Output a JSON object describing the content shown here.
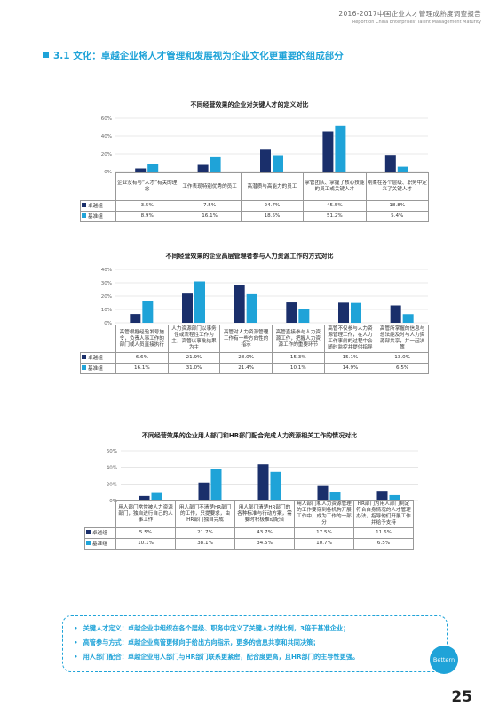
{
  "header": {
    "title": "2016-2017中国企业人才管理成熟度调查报告",
    "subtitle": "Report on China Enterprises' Talent Management Maturity"
  },
  "section_title": "3.1 文化：卓越企业将人才管理和发展视为企业文化更重要的组成部分",
  "colors": {
    "series1": "#1a2f6b",
    "series2": "#1fa3d8",
    "accent": "#1fa3d8"
  },
  "chart_data": [
    {
      "type": "bar",
      "title": "不同经营效果的企业对关键人才的定义对比",
      "categories": [
        "企业没有与“人才”有关的理念",
        "工作表现特别优秀的员工",
        "高潜质与高能力的员工",
        "掌管团队、掌握了核心技能的员工或关键人才",
        "刚柔在各个层级、职务中定义了关键人才"
      ],
      "series": [
        {
          "name": "卓越组",
          "values": [
            3.5,
            7.5,
            24.7,
            45.5,
            18.8
          ],
          "labels": [
            "3.5%",
            "7.5%",
            "24.7%",
            "45.5%",
            "18.8%"
          ]
        },
        {
          "name": "基准组",
          "values": [
            8.9,
            16.1,
            18.5,
            51.2,
            5.4
          ],
          "labels": [
            "8.9%",
            "16.1%",
            "18.5%",
            "51.2%",
            "5.4%"
          ]
        }
      ],
      "ylim": [
        0,
        60
      ],
      "yticks": [
        "0%",
        "20%",
        "40%",
        "60%"
      ]
    },
    {
      "type": "bar",
      "title": "不同经营效果的企业高层管理者参与人力资源工作的方式对比",
      "categories": [
        "高管根据经验发号施令，负责人事工作的部门或人员直接执行",
        "人力资源部门以事务性或流程性工作为主，高管以事批结果为主",
        "高管对人力资源管理工作有一些方向性的指示",
        "高管直接参与人力资源工作，把握人力资源工作的重要环节",
        "高管不仅参与人力资源管理工作，在人力工作事前的过程中会随时监控并提供指导",
        "高管所掌握的信息与想法能及时与人力资源部共享，并一起决策"
      ],
      "series": [
        {
          "name": "卓越组",
          "values": [
            6.6,
            21.9,
            28.0,
            15.3,
            15.1,
            13.0
          ],
          "labels": [
            "6.6%",
            "21.9%",
            "28.0%",
            "15.3%",
            "15.1%",
            "13.0%"
          ]
        },
        {
          "name": "基准组",
          "values": [
            16.1,
            31.0,
            21.4,
            10.1,
            14.9,
            6.5
          ],
          "labels": [
            "16.1%",
            "31.0%",
            "21.4%",
            "10.1%",
            "14.9%",
            "6.5%"
          ]
        }
      ],
      "ylim": [
        0,
        40
      ],
      "yticks": [
        "0%",
        "10%",
        "20%",
        "30%",
        "40%"
      ]
    },
    {
      "type": "bar",
      "title": "不同经营效果的企业用人部门和HR部门配合完成人力资源相关工作的情况对比",
      "categories": [
        "用人部门常常被人力资源部门，独自进行自己的人事工作",
        "用人部门不清楚HR部门的工作，只提要求，由HR部门独自完成",
        "用人部门清楚HR部门的各种标准与行动方案，需要时积极推动配合",
        "用人部门和人力资源管理的工作要穿到各机构开展工作中，成为工作的一部分",
        "HR部门为用人部门制定符合自身情况的人才管理办法，指导他们开展工作并给予支持"
      ],
      "series": [
        {
          "name": "卓越组",
          "values": [
            5.5,
            21.7,
            43.7,
            17.5,
            11.6
          ],
          "labels": [
            "5.5%",
            "21.7%",
            "43.7%",
            "17.5%",
            "11.6%"
          ]
        },
        {
          "name": "基准组",
          "values": [
            10.1,
            38.1,
            34.5,
            10.7,
            6.5
          ],
          "labels": [
            "10.1%",
            "38.1%",
            "34.5%",
            "10.7%",
            "6.5%"
          ]
        }
      ],
      "ylim": [
        0,
        60
      ],
      "yticks": [
        "0%",
        "20%",
        "40%",
        "60%"
      ]
    }
  ],
  "summary": {
    "items": [
      "关键人才定义：卓越企业中组织在各个层级、职务中定义了关键人才的比例，3倍于基准企业；",
      "高管参与方式：卓越企业高管更倾向于给出方向指示，更多的信息共享和共同决策；",
      "用人部门配合：卓越企业用人部门与HR部门联系更紧密，配合度更高，且HR部门的主导性更强。"
    ],
    "badge": "Bettern"
  },
  "page_number": "25"
}
